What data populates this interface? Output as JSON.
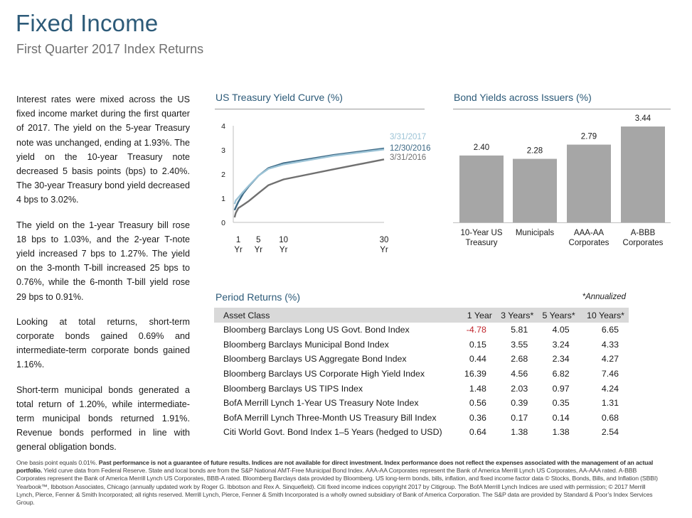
{
  "header": {
    "title": "Fixed Income",
    "subtitle": "First Quarter 2017 Index Returns"
  },
  "body": {
    "paragraphs": [
      "Interest rates were mixed across the US fixed income market during the first quarter of 2017. The yield on the 5-year Treasury note was unchanged, ending at 1.93%. The yield on the 10-year Treasury note decreased 5 basis points (bps) to 2.40%. The 30-year Treasury bond yield decreased 4 bps to 3.02%.",
      "The yield on the 1-year Treasury bill rose 18 bps to 1.03%, and the 2-year T-note yield increased 7 bps to 1.27%. The yield on the 3-month T-bill increased 25 bps to 0.76%, while the 6-month T-bill yield rose 29 bps to 0.91%.",
      "Looking at total returns, short-term corporate bonds gained 0.69% and intermediate-term corporate bonds gained 1.16%.",
      "Short-term municipal bonds generated a total return of 1.20%, while intermediate-term municipal bonds returned 1.91%. Revenue bonds performed in line with general obligation bonds."
    ]
  },
  "yield_curve": {
    "heading": "US Treasury Yield Curve (%)"
  },
  "bond_yields": {
    "heading": "Bond Yields across Issuers (%)"
  },
  "chart_data": [
    {
      "type": "line",
      "title": "US Treasury Yield Curve (%)",
      "ylim": [
        0,
        4
      ],
      "yticks": [
        "0",
        "1",
        "2",
        "3",
        "4"
      ],
      "xlim": [
        0,
        30
      ],
      "xticks": [
        {
          "value": 1,
          "line1": "1",
          "line2": "Yr"
        },
        {
          "value": 5,
          "line1": "5",
          "line2": "Yr"
        },
        {
          "value": 10,
          "line1": "10",
          "line2": "Yr"
        },
        {
          "value": 30,
          "line1": "30",
          "line2": "Yr"
        }
      ],
      "series": [
        {
          "name": "3/31/2017",
          "color": "#9cc3d6",
          "x": [
            0.25,
            0.5,
            1,
            2,
            3,
            5,
            7,
            10,
            20,
            30
          ],
          "values": [
            0.76,
            0.91,
            1.03,
            1.27,
            1.5,
            1.93,
            2.22,
            2.4,
            2.76,
            3.02
          ]
        },
        {
          "name": "12/30/2016",
          "color": "#3d6985",
          "x": [
            0.25,
            0.5,
            1,
            2,
            3,
            5,
            7,
            10,
            20,
            30
          ],
          "values": [
            0.51,
            0.62,
            0.85,
            1.2,
            1.47,
            1.93,
            2.25,
            2.45,
            2.79,
            3.06
          ]
        },
        {
          "name": "3/31/2016",
          "color": "#707070",
          "x": [
            0.25,
            0.5,
            1,
            2,
            3,
            5,
            7,
            10,
            20,
            30
          ],
          "values": [
            0.21,
            0.39,
            0.59,
            0.73,
            0.87,
            1.21,
            1.54,
            1.78,
            2.2,
            2.61
          ]
        }
      ]
    },
    {
      "type": "bar",
      "title": "Bond Yields across Issuers (%)",
      "categories": [
        {
          "line1": "10-Year US",
          "line2": "Treasury"
        },
        {
          "line1": "Municipals",
          "line2": ""
        },
        {
          "line1": "AAA-AA",
          "line2": "Corporates"
        },
        {
          "line1": "A-BBB",
          "line2": "Corporates"
        }
      ],
      "values": [
        2.4,
        2.28,
        2.79,
        3.44
      ],
      "labels": [
        "2.40",
        "2.28",
        "2.79",
        "3.44"
      ],
      "ylim": [
        0,
        3.9
      ],
      "color": "#a6a6a6"
    }
  ],
  "returns": {
    "heading": "Period Returns (%)",
    "annotation": "*Annualized",
    "columns": [
      "Asset Class",
      "1 Year",
      "3 Years*",
      "5 Years*",
      "10 Years*"
    ],
    "rows": [
      {
        "name": "Bloomberg Barclays Long US Govt. Bond Index",
        "y1": "-4.78",
        "y3": "5.81",
        "y5": "4.05",
        "y10": "6.65"
      },
      {
        "name": "Bloomberg Barclays Municipal Bond Index",
        "y1": "0.15",
        "y3": "3.55",
        "y5": "3.24",
        "y10": "4.33"
      },
      {
        "name": "Bloomberg Barclays US Aggregate Bond Index",
        "y1": "0.44",
        "y3": "2.68",
        "y5": "2.34",
        "y10": "4.27"
      },
      {
        "name": "Bloomberg Barclays US Corporate High Yield Index",
        "y1": "16.39",
        "y3": "4.56",
        "y5": "6.82",
        "y10": "7.46"
      },
      {
        "name": "Bloomberg Barclays US TIPS Index",
        "y1": "1.48",
        "y3": "2.03",
        "y5": "0.97",
        "y10": "4.24"
      },
      {
        "name": "BofA Merrill Lynch 1-Year US Treasury Note Index",
        "y1": "0.56",
        "y3": "0.39",
        "y5": "0.35",
        "y10": "1.31"
      },
      {
        "name": "BofA Merrill Lynch Three-Month US Treasury Bill Index",
        "y1": "0.36",
        "y3": "0.17",
        "y5": "0.14",
        "y10": "0.68"
      },
      {
        "name": "Citi World Govt. Bond Index 1–5 Years (hedged to USD)",
        "y1": "0.64",
        "y3": "1.38",
        "y5": "1.38",
        "y10": "2.54"
      }
    ],
    "negative_color": "#c0262d"
  },
  "footnote": {
    "lead": "One basis point equals 0.01%.",
    "bold": "Past performance is not a guarantee of future results. Indices are not available for direct investment. Index performance does not reflect the expenses associated with the management of an actual portfolio.",
    "rest": "Yield curve data from Federal Reserve. State and local bonds are from the S&P National AMT-Free Municipal Bond Index. AAA-AA Corporates represent the Bank of America Merrill Lynch US Corporates, AA-AAA rated. A-BBB Corporates represent the Bank of America Merrill Lynch US Corporates, BBB-A rated. Bloomberg Barclays data provided by Bloomberg. US long-term bonds, bills, inflation, and fixed income factor data © Stocks, Bonds, Bills, and Inflation (SBBI) Yearbook™, Ibbotson Associates, Chicago (annually updated work by Roger G. Ibbotson and Rex A. Sinquefield). Citi fixed income indices copyright 2017 by Citigroup. The BofA Merrill Lynch Indices are used with permission; © 2017 Merrill Lynch, Pierce, Fenner & Smith Incorporated; all rights reserved. Merrill Lynch, Pierce, Fenner & Smith Incorporated is a wholly owned subsidiary of Bank of America Corporation. The S&P data are provided by Standard & Poor’s Index Services Group."
  }
}
